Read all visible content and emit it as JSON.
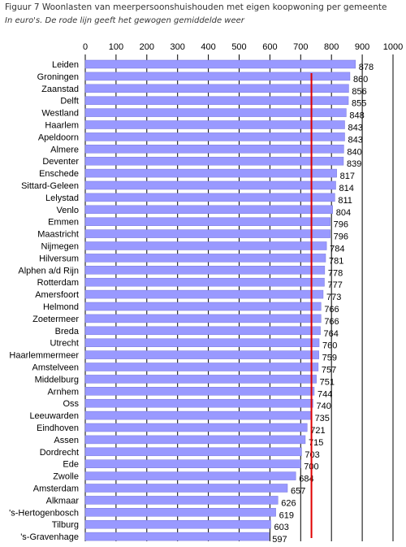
{
  "title": "Figuur 7 Woonlasten van meerpersoonshuishouden met eigen koopwoning per gemeente",
  "subtitle": "In euro's. De rode lijn geeft het gewogen gemiddelde weer",
  "colors": {
    "bar": "#9999ff",
    "bar_edge": "#7777dd",
    "average_line": "#e00000",
    "grid": "#000000"
  },
  "chart_data": {
    "type": "bar",
    "orientation": "horizontal",
    "title": "Figuur 7 Woonlasten van meerpersoonshuishouden met eigen koopwoning per gemeente",
    "subtitle": "In euro's. De rode lijn geeft het gewogen gemiddelde weer",
    "xlim": [
      0,
      1000
    ],
    "ticks": [
      0,
      100,
      200,
      300,
      400,
      500,
      600,
      700,
      800,
      900,
      1000
    ],
    "tick_labels": [
      "0",
      "100",
      "200",
      "300",
      "400",
      "500",
      "600",
      "700",
      "800",
      "900",
      "1000"
    ],
    "grid": true,
    "average": 735,
    "categories": [
      "Leiden",
      "Groningen",
      "Zaanstad",
      "Delft",
      "Westland",
      "Haarlem",
      "Apeldoorn",
      "Almere",
      "Deventer",
      "Enschede",
      "Sittard-Geleen",
      "Lelystad",
      "Venlo",
      "Emmen",
      "Maastricht",
      "Nijmegen",
      "Hilversum",
      "Alphen a/d Rijn",
      "Rotterdam",
      "Amersfoort",
      "Helmond",
      "Zoetermeer",
      "Breda",
      "Utrecht",
      "Haarlemmermeer",
      "Amstelveen",
      "Middelburg",
      "Arnhem",
      "Oss",
      "Leeuwarden",
      "Eindhoven",
      "Assen",
      "Dordrecht",
      "Ede",
      "Zwolle",
      "Amsterdam",
      "Alkmaar",
      "'s-Hertogenbosch",
      "Tilburg",
      "'s-Gravenhage"
    ],
    "values": [
      878,
      860,
      856,
      855,
      848,
      843,
      843,
      840,
      839,
      817,
      814,
      811,
      804,
      796,
      796,
      784,
      781,
      778,
      777,
      773,
      766,
      766,
      764,
      760,
      759,
      757,
      751,
      744,
      740,
      735,
      721,
      715,
      703,
      700,
      684,
      657,
      626,
      619,
      603,
      597
    ]
  }
}
